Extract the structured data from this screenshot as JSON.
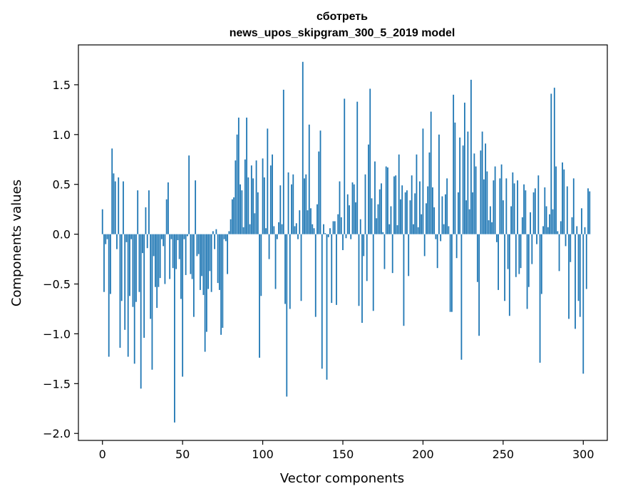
{
  "chart_data": {
    "type": "bar",
    "title_line1": "сботреть",
    "title_line2": "news_upos_skipgram_300_5_2019 model",
    "xlabel": "Vector components",
    "ylabel": "Components values",
    "xlim": [
      -15,
      315
    ],
    "ylim": [
      -2.07,
      1.9
    ],
    "xticks": [
      0,
      50,
      100,
      150,
      200,
      250,
      300
    ],
    "yticks": [
      -2.0,
      -1.5,
      -1.0,
      -0.5,
      0.0,
      0.5,
      1.0,
      1.5
    ],
    "ytick_labels": [
      "−2.0",
      "−1.5",
      "−1.0",
      "−0.5",
      "0.0",
      "0.5",
      "1.0",
      "1.5"
    ],
    "bar_color": "#1f77b4",
    "grid": false,
    "values": [
      0.25,
      -0.58,
      -0.1,
      -0.05,
      -1.23,
      -0.6,
      0.86,
      0.61,
      0.53,
      -0.15,
      0.57,
      -1.14,
      -0.67,
      0.53,
      -0.96,
      -0.08,
      -1.23,
      -0.62,
      -0.05,
      -0.73,
      -1.3,
      -0.68,
      0.44,
      -0.58,
      -1.55,
      -0.19,
      -1.04,
      0.27,
      -0.14,
      0.44,
      -0.85,
      -1.36,
      -0.22,
      -0.53,
      -0.74,
      -0.53,
      -0.44,
      -0.05,
      -0.12,
      -0.5,
      0.35,
      0.52,
      -0.45,
      -0.05,
      -0.34,
      -1.89,
      -0.35,
      -0.06,
      -0.25,
      -0.65,
      -1.43,
      -0.05,
      -0.41,
      -0.02,
      0.79,
      -0.4,
      -0.45,
      -0.83,
      0.54,
      -0.22,
      -0.2,
      -0.56,
      -0.42,
      -0.61,
      -1.18,
      -0.98,
      -0.55,
      -0.37,
      -0.58,
      0.03,
      -0.15,
      0.05,
      -0.49,
      -0.56,
      -1.01,
      -0.94,
      -0.05,
      -0.07,
      -0.4,
      0.03,
      0.15,
      0.35,
      0.37,
      0.74,
      1.0,
      1.17,
      0.5,
      0.44,
      0.07,
      0.75,
      1.17,
      0.57,
      0.1,
      0.69,
      0.56,
      0.21,
      0.74,
      0.42,
      -1.24,
      -0.62,
      0.76,
      0.57,
      0.06,
      1.06,
      -0.25,
      0.69,
      0.8,
      0.08,
      -0.55,
      -0.05,
      0.12,
      0.49,
      0.1,
      1.45,
      -0.7,
      -1.63,
      0.62,
      -0.75,
      0.5,
      0.6,
      0.08,
      0.11,
      -0.05,
      0.24,
      -0.67,
      1.73,
      0.56,
      0.6,
      0.24,
      1.1,
      0.26,
      0.1,
      0.06,
      -0.83,
      0.3,
      0.83,
      1.04,
      -1.35,
      0.1,
      0.01,
      -1.46,
      -0.03,
      0.06,
      -0.69,
      0.13,
      0.13,
      -0.71,
      0.2,
      0.53,
      0.17,
      -0.16,
      1.36,
      -0.04,
      0.4,
      0.29,
      -0.05,
      0.52,
      0.5,
      0.32,
      1.33,
      -0.72,
      0.15,
      -0.89,
      -0.22,
      0.6,
      -0.47,
      0.9,
      1.46,
      0.36,
      -0.77,
      0.73,
      0.16,
      0.3,
      0.45,
      0.51,
      0.02,
      -0.35,
      0.68,
      0.67,
      0.1,
      0.28,
      -0.39,
      0.58,
      0.59,
      0.09,
      0.8,
      0.35,
      0.49,
      -0.92,
      0.42,
      0.44,
      -0.42,
      0.34,
      0.59,
      0.1,
      0.41,
      0.8,
      0.07,
      0.53,
      0.2,
      1.06,
      -0.22,
      0.31,
      0.48,
      0.82,
      1.23,
      0.47,
      0.27,
      -0.05,
      -0.34,
      1.0,
      -0.07,
      0.38,
      0.1,
      0.4,
      0.56,
      0.08,
      -0.78,
      -0.78,
      1.4,
      1.12,
      -0.24,
      0.42,
      0.97,
      -1.26,
      0.89,
      1.32,
      0.34,
      1.03,
      0.25,
      1.55,
      0.42,
      0.81,
      0.68,
      -0.48,
      -1.02,
      0.84,
      1.03,
      0.55,
      0.91,
      0.63,
      0.14,
      0.28,
      0.12,
      0.54,
      0.68,
      -0.08,
      -0.56,
      0.56,
      0.7,
      0.34,
      -0.67,
      0.56,
      -0.35,
      -0.82,
      0.28,
      0.62,
      0.51,
      -0.43,
      0.54,
      -0.4,
      -0.34,
      0.17,
      0.5,
      0.44,
      -0.75,
      -0.53,
      0.22,
      -0.3,
      0.42,
      0.46,
      -0.1,
      0.59,
      -1.29,
      -0.6,
      0.08,
      0.47,
      0.28,
      0.07,
      0.2,
      1.41,
      0.25,
      1.47,
      0.68,
      0.03,
      -0.37,
      0.13,
      0.72,
      0.65,
      -0.12,
      0.48,
      -0.85,
      -0.28,
      0.17,
      0.56,
      -0.95,
      0.08,
      -0.67,
      -0.83,
      0.26,
      -1.4,
      0.07,
      -0.55,
      0.46,
      0.43
    ]
  }
}
